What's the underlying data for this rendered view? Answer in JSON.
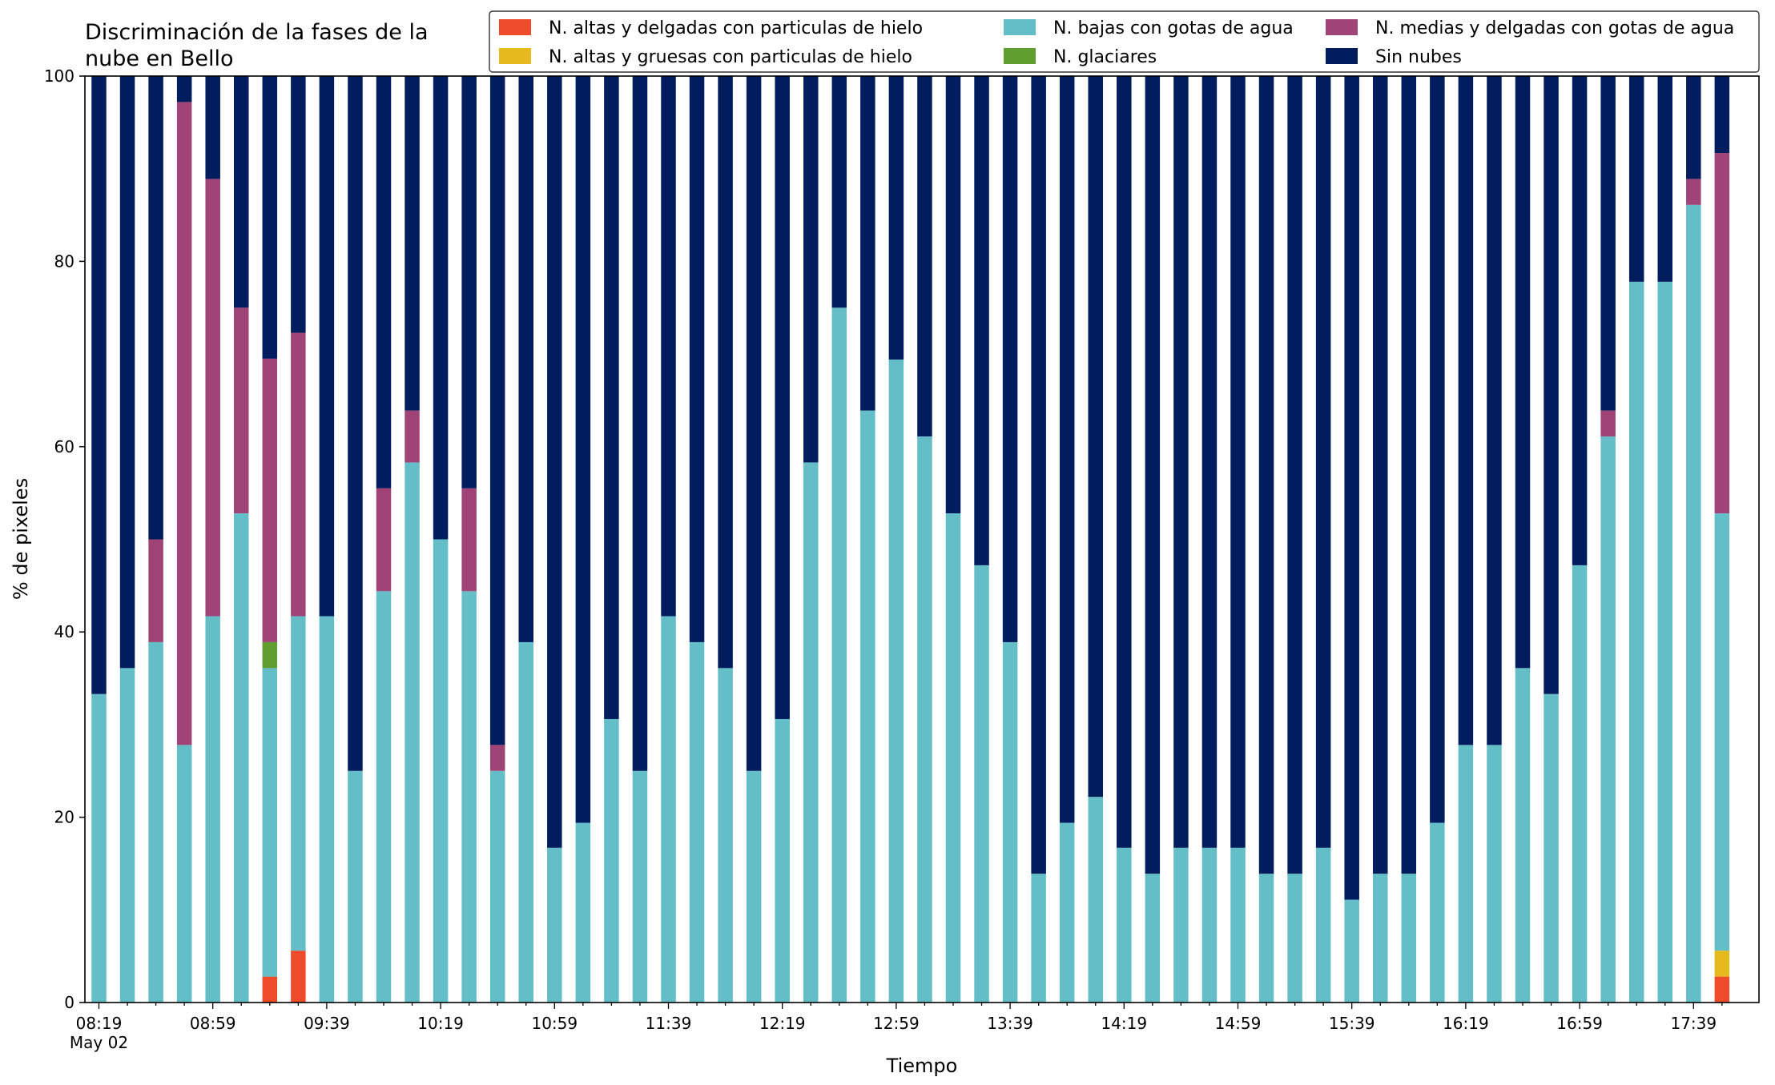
{
  "chart_data": {
    "type": "bar",
    "stacked": true,
    "title": "Discriminación de la fases de la\nnube en Bello",
    "xlabel": "Tiempo",
    "ylabel": "% de pixeles",
    "ylim": [
      0,
      100
    ],
    "yticks": [
      0,
      20,
      40,
      60,
      80,
      100
    ],
    "xtick_labels": [
      "08:19",
      "08:59",
      "09:39",
      "10:19",
      "10:59",
      "11:39",
      "12:19",
      "12:59",
      "13:39",
      "14:19",
      "14:59",
      "15:39",
      "16:19",
      "16:59",
      "17:39"
    ],
    "xtick_every": 4,
    "date_label": "May 02",
    "grid": false,
    "legend_position": "top-right",
    "categories": [
      "08:19",
      "08:29",
      "08:39",
      "08:49",
      "08:59",
      "09:09",
      "09:19",
      "09:29",
      "09:39",
      "09:49",
      "09:59",
      "10:09",
      "10:19",
      "10:29",
      "10:39",
      "10:49",
      "10:59",
      "11:09",
      "11:19",
      "11:29",
      "11:39",
      "11:49",
      "11:59",
      "12:09",
      "12:19",
      "12:29",
      "12:39",
      "12:49",
      "12:59",
      "13:09",
      "13:19",
      "13:29",
      "13:39",
      "13:49",
      "13:59",
      "14:09",
      "14:19",
      "14:29",
      "14:39",
      "14:49",
      "14:59",
      "15:09",
      "15:19",
      "15:29",
      "15:39",
      "15:49",
      "15:59",
      "16:09",
      "16:19",
      "16:29",
      "16:39",
      "16:49",
      "16:59",
      "17:09",
      "17:19",
      "17:29",
      "17:39",
      "17:49"
    ],
    "series": [
      {
        "name": "N. altas y delgadas con particulas de hielo",
        "color": "#ee4b2b",
        "values": [
          0,
          0,
          0,
          0,
          0,
          0,
          2.8,
          5.6,
          0,
          0,
          0,
          0,
          0,
          0,
          0,
          0,
          0,
          0,
          0,
          0,
          0,
          0,
          0,
          0,
          0,
          0,
          0,
          0,
          0,
          0,
          0,
          0,
          0,
          0,
          0,
          0,
          0,
          0,
          0,
          0,
          0,
          0,
          0,
          0,
          0,
          0,
          0,
          0,
          0,
          0,
          0,
          0,
          0,
          0,
          0,
          0,
          0,
          2.8
        ]
      },
      {
        "name": "N. altas y gruesas con particulas de hielo",
        "color": "#e6b91e",
        "values": [
          0,
          0,
          0,
          0,
          0,
          0,
          0,
          0,
          0,
          0,
          0,
          0,
          0,
          0,
          0,
          0,
          0,
          0,
          0,
          0,
          0,
          0,
          0,
          0,
          0,
          0,
          0,
          0,
          0,
          0,
          0,
          0,
          0,
          0,
          0,
          0,
          0,
          0,
          0,
          0,
          0,
          0,
          0,
          0,
          0,
          0,
          0,
          0,
          0,
          0,
          0,
          0,
          0,
          0,
          0,
          0,
          0,
          2.8
        ]
      },
      {
        "name": "N. bajas con gotas de agua",
        "color": "#64bec8",
        "values": [
          33.3,
          36.1,
          38.9,
          27.8,
          41.7,
          52.8,
          33.3,
          36.1,
          41.7,
          25.0,
          44.4,
          58.3,
          50.0,
          44.4,
          25.0,
          38.9,
          16.7,
          19.4,
          30.6,
          25.0,
          41.7,
          38.9,
          36.1,
          25.0,
          30.6,
          58.3,
          75.0,
          63.9,
          69.4,
          61.1,
          52.8,
          47.2,
          38.9,
          13.9,
          19.4,
          22.2,
          16.7,
          13.9,
          16.7,
          16.7,
          16.7,
          13.9,
          13.9,
          16.7,
          11.1,
          13.9,
          13.9,
          19.4,
          27.8,
          27.8,
          36.1,
          33.3,
          47.2,
          61.1,
          77.8,
          77.8,
          86.1,
          47.2
        ]
      },
      {
        "name": "N. glaciares",
        "color": "#5f9e2f",
        "values": [
          0,
          0,
          0,
          0,
          0,
          0,
          2.8,
          0,
          0,
          0,
          0,
          0,
          0,
          0,
          0,
          0,
          0,
          0,
          0,
          0,
          0,
          0,
          0,
          0,
          0,
          0,
          0,
          0,
          0,
          0,
          0,
          0,
          0,
          0,
          0,
          0,
          0,
          0,
          0,
          0,
          0,
          0,
          0,
          0,
          0,
          0,
          0,
          0,
          0,
          0,
          0,
          0,
          0,
          0,
          0,
          0,
          0,
          0
        ]
      },
      {
        "name": "N. medias y delgadas con gotas de agua",
        "color": "#a04478",
        "values": [
          0,
          0,
          11.1,
          69.4,
          47.2,
          22.2,
          30.6,
          30.6,
          0,
          0,
          11.1,
          5.6,
          0,
          11.1,
          2.8,
          0,
          0,
          0,
          0,
          0,
          0,
          0,
          0,
          0,
          0,
          0,
          0,
          0,
          0,
          0,
          0,
          0,
          0,
          0,
          0,
          0,
          0,
          0,
          0,
          0,
          0,
          0,
          0,
          0,
          0,
          0,
          0,
          0,
          0,
          0,
          0,
          0,
          0,
          2.8,
          0,
          0,
          2.8,
          38.9
        ]
      },
      {
        "name": "Sin nubes",
        "color": "#021d5e",
        "values": [
          66.7,
          63.9,
          50.0,
          2.8,
          11.1,
          25.0,
          30.5,
          27.7,
          58.3,
          75.0,
          44.5,
          36.1,
          50.0,
          44.5,
          72.2,
          61.1,
          83.3,
          80.6,
          69.4,
          75.0,
          58.3,
          61.1,
          63.9,
          75.0,
          69.4,
          41.7,
          25.0,
          36.1,
          30.6,
          38.9,
          47.2,
          52.8,
          61.1,
          86.1,
          80.6,
          77.8,
          83.3,
          86.1,
          83.3,
          83.3,
          83.3,
          86.1,
          86.1,
          83.3,
          88.9,
          86.1,
          86.1,
          80.6,
          72.2,
          72.2,
          63.9,
          66.7,
          52.8,
          36.1,
          22.2,
          22.2,
          11.1,
          8.3
        ]
      }
    ]
  }
}
